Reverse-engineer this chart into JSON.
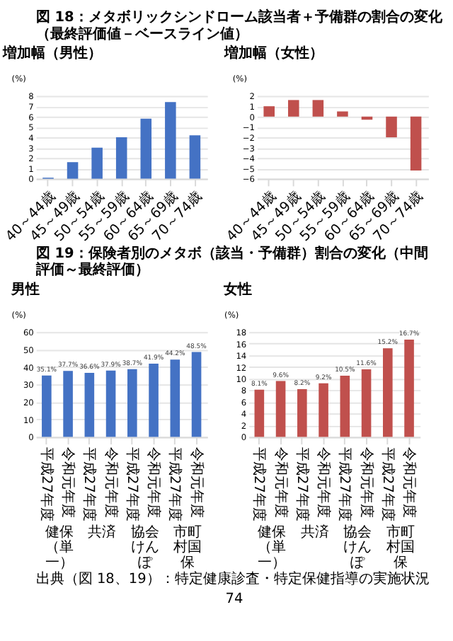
{
  "chart_data": [
    {
      "type": "bar",
      "title": "増加幅（男性）",
      "ylabel": "(%)",
      "categories": [
        "40～44歳",
        "45～49歳",
        "50～54歳",
        "55～59歳",
        "60～64歳",
        "65～69歳",
        "70～74歳"
      ],
      "values": [
        0.1,
        1.6,
        3.0,
        4.0,
        5.8,
        7.4,
        4.2
      ],
      "color": "#4472c4",
      "ylim": [
        0,
        8
      ],
      "yticks": [
        0,
        1,
        2,
        3,
        4,
        5,
        6,
        7,
        8
      ],
      "grid": "y",
      "annotations": [
        "図 18：メタボリックシンドローム該当者＋予備群の割合の変化",
        "（最終評価値－ベースライン値）"
      ]
    },
    {
      "type": "bar",
      "title": "増加幅（女性）",
      "ylabel": "(%)",
      "categories": [
        "40～44歳",
        "45～49歳",
        "50～54歳",
        "55～59歳",
        "60～64歳",
        "65～69歳",
        "70～74歳"
      ],
      "values": [
        1.0,
        1.6,
        1.6,
        0.5,
        -0.3,
        -2.0,
        -5.2
      ],
      "color": "#c0504d",
      "ylim": [
        -6,
        2
      ],
      "yticks": [
        -6,
        -5,
        -4,
        -3,
        -2,
        -1,
        0,
        1,
        2
      ],
      "grid": "y"
    },
    {
      "type": "bar",
      "title": "男性",
      "ylabel": "(%)",
      "categories": [
        "平成27年度",
        "令和元年度",
        "平成27年度",
        "令和元年度",
        "平成27年度",
        "令和元年度",
        "平成27年度",
        "令和元年度"
      ],
      "values": [
        35.1,
        37.7,
        36.6,
        37.9,
        38.7,
        41.9,
        44.2,
        48.5
      ],
      "value_labels": [
        "35.1%",
        "37.7%",
        "36.6%",
        "37.9%",
        "38.7%",
        "41.9%",
        "44.2%",
        "48.5%"
      ],
      "color": "#4472c4",
      "ylim": [
        0,
        60
      ],
      "yticks": [
        0,
        10,
        20,
        30,
        40,
        50,
        60
      ],
      "grid": "y",
      "annotations": [
        "図 19：保険者別のメタボ（該当・予備群）割合の変化（中間評価～最終評価）",
        "健保（単一）",
        "共済",
        "協会けんぽ",
        "市町村国保"
      ]
    },
    {
      "type": "bar",
      "title": "女性",
      "ylabel": "(%)",
      "categories": [
        "平成27年度",
        "令和元年度",
        "平成27年度",
        "令和元年度",
        "平成27年度",
        "令和元年度",
        "平成27年度",
        "令和元年度"
      ],
      "values": [
        8.1,
        9.6,
        8.2,
        9.2,
        10.5,
        11.6,
        15.2,
        16.7
      ],
      "value_labels": [
        "8.1%",
        "9.6%",
        "8.2%",
        "9.2%",
        "10.5%",
        "11.6%",
        "15.2%",
        "16.7%"
      ],
      "color": "#c0504d",
      "ylim": [
        0,
        18
      ],
      "yticks": [
        0,
        2,
        4,
        6,
        8,
        10,
        12,
        14,
        16,
        18
      ],
      "grid": "y",
      "annotations": [
        "健保（単一）",
        "共済",
        "協会けんぽ",
        "市町村国保",
        "出典（図 18、19）：特定健康診査・特定保健指導の実施状況",
        "74"
      ]
    }
  ]
}
